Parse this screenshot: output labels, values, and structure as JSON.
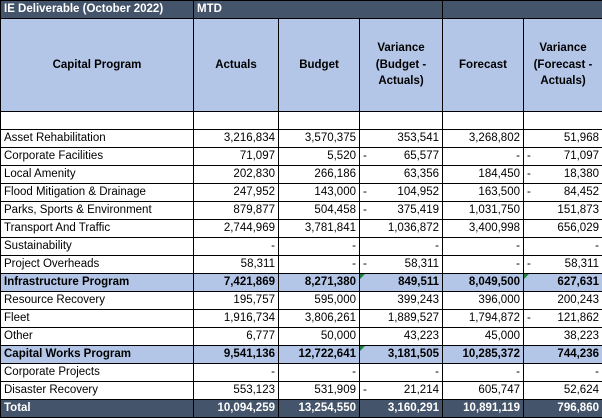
{
  "title": {
    "label": "IE Deliverable   (October 2022)",
    "period": "MTD"
  },
  "headers": {
    "program": "Capital Program",
    "actuals": "Actuals",
    "budget": "Budget",
    "variance_budget": [
      "Variance",
      "(Budget -",
      "Actuals)"
    ],
    "forecast": "Forecast",
    "variance_forecast": [
      "Variance",
      "(Forecast -",
      "Actuals)"
    ]
  },
  "rows": [
    {
      "name": "Asset Rehabilitation",
      "actuals": "3,216,834",
      "budget": "3,570,375",
      "var_budget": "353,541",
      "forecast": "3,268,802",
      "var_forecast": "51,968",
      "vb_neg": false,
      "vf_neg": false
    },
    {
      "name": "Corporate Facilities",
      "actuals": "71,097",
      "budget": "5,520",
      "var_budget": "65,577",
      "forecast": "-",
      "var_forecast": "71,097",
      "vb_neg": true,
      "vf_neg": true
    },
    {
      "name": "Local Amenity",
      "actuals": "202,830",
      "budget": "266,186",
      "var_budget": "63,356",
      "forecast": "184,450",
      "var_forecast": "18,380",
      "vb_neg": false,
      "vf_neg": true
    },
    {
      "name": "Flood Mitigation & Drainage",
      "actuals": "247,952",
      "budget": "143,000",
      "var_budget": "104,952",
      "forecast": "163,500",
      "var_forecast": "84,452",
      "vb_neg": true,
      "vf_neg": true
    },
    {
      "name": "Parks, Sports & Environment",
      "actuals": "879,877",
      "budget": "504,458",
      "var_budget": "375,419",
      "forecast": "1,031,750",
      "var_forecast": "151,873",
      "vb_neg": true,
      "vf_neg": false
    },
    {
      "name": "Transport And Traffic",
      "actuals": "2,744,969",
      "budget": "3,781,841",
      "var_budget": "1,036,872",
      "forecast": "3,400,998",
      "var_forecast": "656,029",
      "vb_neg": false,
      "vf_neg": false
    },
    {
      "name": "Sustainability",
      "actuals": "-",
      "budget": "-",
      "var_budget": "-",
      "forecast": "-",
      "var_forecast": "-",
      "vb_neg": false,
      "vf_neg": false
    },
    {
      "name": "Project Overheads",
      "actuals": "58,311",
      "budget": "-",
      "var_budget": "58,311",
      "forecast": "-",
      "var_forecast": "58,311",
      "vb_neg": true,
      "vf_neg": true
    },
    {
      "name": "Infrastructure Program",
      "actuals": "7,421,869",
      "budget": "8,271,380",
      "var_budget": "849,511",
      "forecast": "8,049,500",
      "var_forecast": "627,631",
      "vb_neg": false,
      "vf_neg": false,
      "total": true
    },
    {
      "name": "Resource Recovery",
      "actuals": "195,757",
      "budget": "595,000",
      "var_budget": "399,243",
      "forecast": "396,000",
      "var_forecast": "200,243",
      "vb_neg": false,
      "vf_neg": false
    },
    {
      "name": "Fleet",
      "actuals": "1,916,734",
      "budget": "3,806,261",
      "var_budget": "1,889,527",
      "forecast": "1,794,872",
      "var_forecast": "121,862",
      "vb_neg": false,
      "vf_neg": true
    },
    {
      "name": "Other",
      "actuals": "6,777",
      "budget": "50,000",
      "var_budget": "43,223",
      "forecast": "45,000",
      "var_forecast": "38,223",
      "vb_neg": false,
      "vf_neg": false
    },
    {
      "name": "Capital Works Program",
      "actuals": "9,541,136",
      "budget": "12,722,641",
      "var_budget": "3,181,505",
      "forecast": "10,285,372",
      "var_forecast": "744,236",
      "vb_neg": false,
      "vf_neg": false,
      "total": true
    },
    {
      "name": "Corporate Projects",
      "actuals": "-",
      "budget": "-",
      "var_budget": "-",
      "forecast": "-",
      "var_forecast": "-",
      "vb_neg": false,
      "vf_neg": false
    },
    {
      "name": "Disaster Recovery",
      "actuals": "553,123",
      "budget": "531,909",
      "var_budget": "21,214",
      "forecast": "605,747",
      "var_forecast": "52,624",
      "vb_neg": true,
      "vf_neg": false
    },
    {
      "name": "Total",
      "actuals": "10,094,259",
      "budget": "13,254,550",
      "var_budget": "3,160,291",
      "forecast": "10,891,119",
      "var_forecast": "796,860",
      "vb_neg": false,
      "vf_neg": false,
      "grand": true
    }
  ],
  "colors": {
    "header_dark": "#44546A",
    "header_light": "#B4C6E7",
    "error_flag": "#1a7f3c"
  }
}
